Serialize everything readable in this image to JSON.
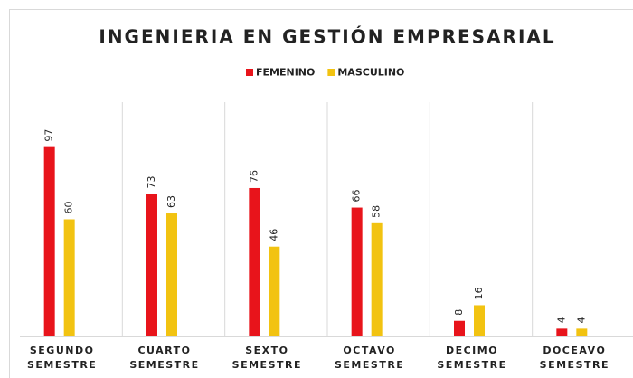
{
  "chart_data": {
    "type": "bar",
    "title": "INGENIERIA EN GESTIÓN EMPRESARIAL",
    "categories": [
      "SEGUNDO SEMESTRE",
      "CUARTO SEMESTRE",
      "SEXTO SEMESTRE",
      "OCTAVO SEMESTRE",
      "DECIMO SEMESTRE",
      "DOCEAVO SEMESTRE"
    ],
    "series": [
      {
        "name": "FEMENINO",
        "color": "#e8141b",
        "values": [
          97,
          73,
          76,
          66,
          8,
          4
        ]
      },
      {
        "name": "MASCULINO",
        "color": "#f2c311",
        "values": [
          60,
          63,
          46,
          58,
          16,
          4
        ]
      }
    ],
    "ylim": [
      0,
      120
    ],
    "legend": "top"
  }
}
